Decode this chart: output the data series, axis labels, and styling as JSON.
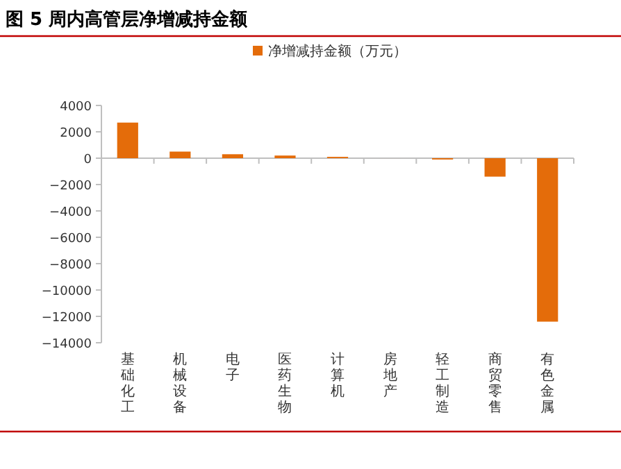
{
  "chart_data": {
    "type": "bar",
    "title": "图 5 周内高管层净增减持金额",
    "categories": [
      "基础化工",
      "机械设备",
      "电子",
      "医药生物",
      "计算机",
      "房地产",
      "轻工制造",
      "商贸零售",
      "有色金属"
    ],
    "series": [
      {
        "name": "净增减持金额（万元）",
        "color": "#e46c0a",
        "values": [
          2700,
          500,
          300,
          200,
          100,
          0,
          -100,
          -1400,
          -12400
        ]
      }
    ],
    "ylim": [
      -14000,
      4000
    ],
    "yticks": [
      -14000,
      -12000,
      -10000,
      -8000,
      -6000,
      -4000,
      -2000,
      0,
      2000,
      4000
    ],
    "legend": "top right"
  }
}
